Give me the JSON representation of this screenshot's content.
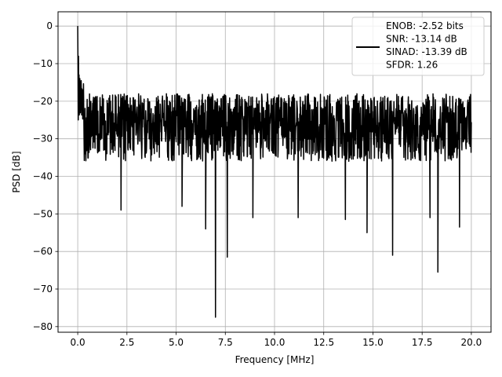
{
  "chart_data": {
    "type": "line",
    "title": "",
    "xlabel": "Frequency [MHz]",
    "ylabel": "PSD [dB]",
    "xlim": [
      -1.0,
      21.0
    ],
    "ylim": [
      -81.5,
      3.8
    ],
    "xticks": [
      0.0,
      2.5,
      5.0,
      7.5,
      10.0,
      12.5,
      15.0,
      17.5,
      20.0
    ],
    "xtick_labels": [
      "0.0",
      "2.5",
      "5.0",
      "7.5",
      "10.0",
      "12.5",
      "15.0",
      "17.5",
      "20.0"
    ],
    "yticks": [
      0,
      -10,
      -20,
      -30,
      -40,
      -50,
      -60,
      -70,
      -80
    ],
    "ytick_labels": [
      "0",
      "−10",
      "−20",
      "−30",
      "−40",
      "−50",
      "−60",
      "−70",
      "−80"
    ],
    "grid": true,
    "legend_position": "top-right",
    "series": [
      {
        "name": "ENOB: -2.52 bits\nSNR: -13.14 dB\nSINAD: -13.39 dB\nSFDR: 1.26",
        "legend_lines": [
          "ENOB: -2.52 bits",
          "SNR: -13.14 dB",
          "SINAD: -13.39 dB",
          "SFDR: 1.26"
        ],
        "color": "#000000",
        "x_range": [
          0.0,
          20.0
        ],
        "noise_floor_mean": -29,
        "noise_floor_band": [
          -40,
          -18
        ],
        "notable_points": [
          {
            "x": 0.0,
            "y": 0
          },
          {
            "x": 0.05,
            "y": -8
          },
          {
            "x": 0.1,
            "y": -14
          },
          {
            "x": 2.2,
            "y": -49
          },
          {
            "x": 5.3,
            "y": -48
          },
          {
            "x": 6.5,
            "y": -54
          },
          {
            "x": 7.0,
            "y": -77.5
          },
          {
            "x": 7.6,
            "y": -61.5
          },
          {
            "x": 8.9,
            "y": -51
          },
          {
            "x": 11.2,
            "y": -51
          },
          {
            "x": 13.6,
            "y": -51.5
          },
          {
            "x": 14.7,
            "y": -55
          },
          {
            "x": 16.0,
            "y": -61
          },
          {
            "x": 17.9,
            "y": -51
          },
          {
            "x": 18.3,
            "y": -65.5
          },
          {
            "x": 19.4,
            "y": -53.5
          }
        ]
      }
    ]
  }
}
